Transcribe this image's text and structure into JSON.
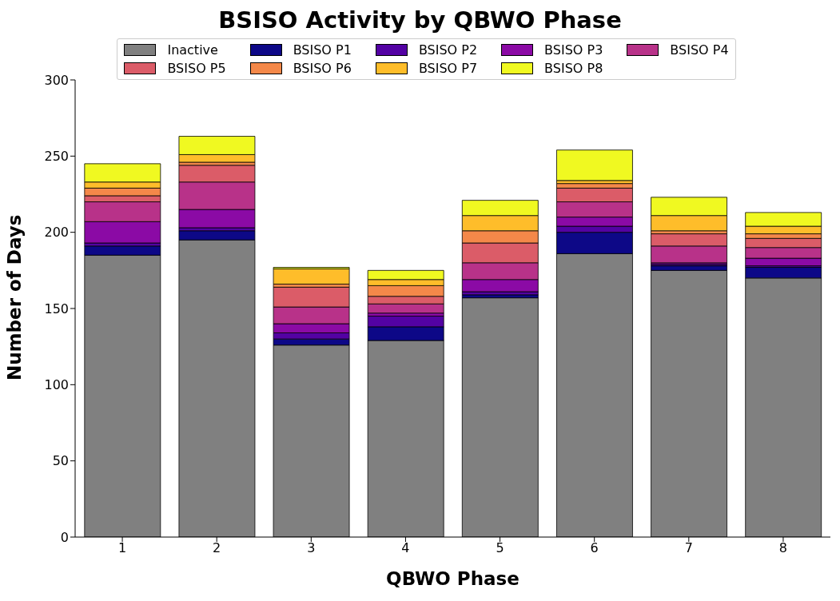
{
  "chart_data": {
    "type": "bar",
    "title": "BSISO Activity by QBWO Phase",
    "xlabel": "QBWO Phase",
    "ylabel": "Number of Days",
    "categories": [
      "1",
      "2",
      "3",
      "4",
      "5",
      "6",
      "7",
      "8"
    ],
    "stacked": true,
    "ylim": [
      0,
      300
    ],
    "yticks": [
      0,
      50,
      100,
      150,
      200,
      250,
      300
    ],
    "grid": false,
    "legend": "top",
    "series": [
      {
        "name": "Inactive",
        "color": "#808080",
        "values": [
          185,
          195,
          126,
          129,
          157,
          186,
          175,
          170
        ]
      },
      {
        "name": "BSISO P1",
        "color": "#0d0887",
        "values": [
          6,
          6,
          4,
          9,
          2,
          14,
          3,
          7
        ]
      },
      {
        "name": "BSISO P2",
        "color": "#5302a3",
        "values": [
          2,
          2,
          4,
          7,
          2,
          4,
          1,
          1
        ]
      },
      {
        "name": "BSISO P3",
        "color": "#8b0aa5",
        "values": [
          14,
          12,
          6,
          2,
          8,
          6,
          1,
          5
        ]
      },
      {
        "name": "BSISO P4",
        "color": "#b83289",
        "values": [
          13,
          18,
          11,
          6,
          11,
          10,
          11,
          7
        ]
      },
      {
        "name": "BSISO P5",
        "color": "#db5c68",
        "values": [
          4,
          11,
          13,
          5,
          13,
          9,
          8,
          6
        ]
      },
      {
        "name": "BSISO P6",
        "color": "#f48849",
        "values": [
          5,
          2,
          2,
          7,
          8,
          3,
          2,
          3
        ]
      },
      {
        "name": "BSISO P7",
        "color": "#febd2a",
        "values": [
          4,
          5,
          10,
          4,
          10,
          2,
          10,
          5
        ]
      },
      {
        "name": "BSISO P8",
        "color": "#f0f921",
        "values": [
          12,
          12,
          1,
          6,
          10,
          20,
          12,
          9
        ]
      }
    ]
  }
}
